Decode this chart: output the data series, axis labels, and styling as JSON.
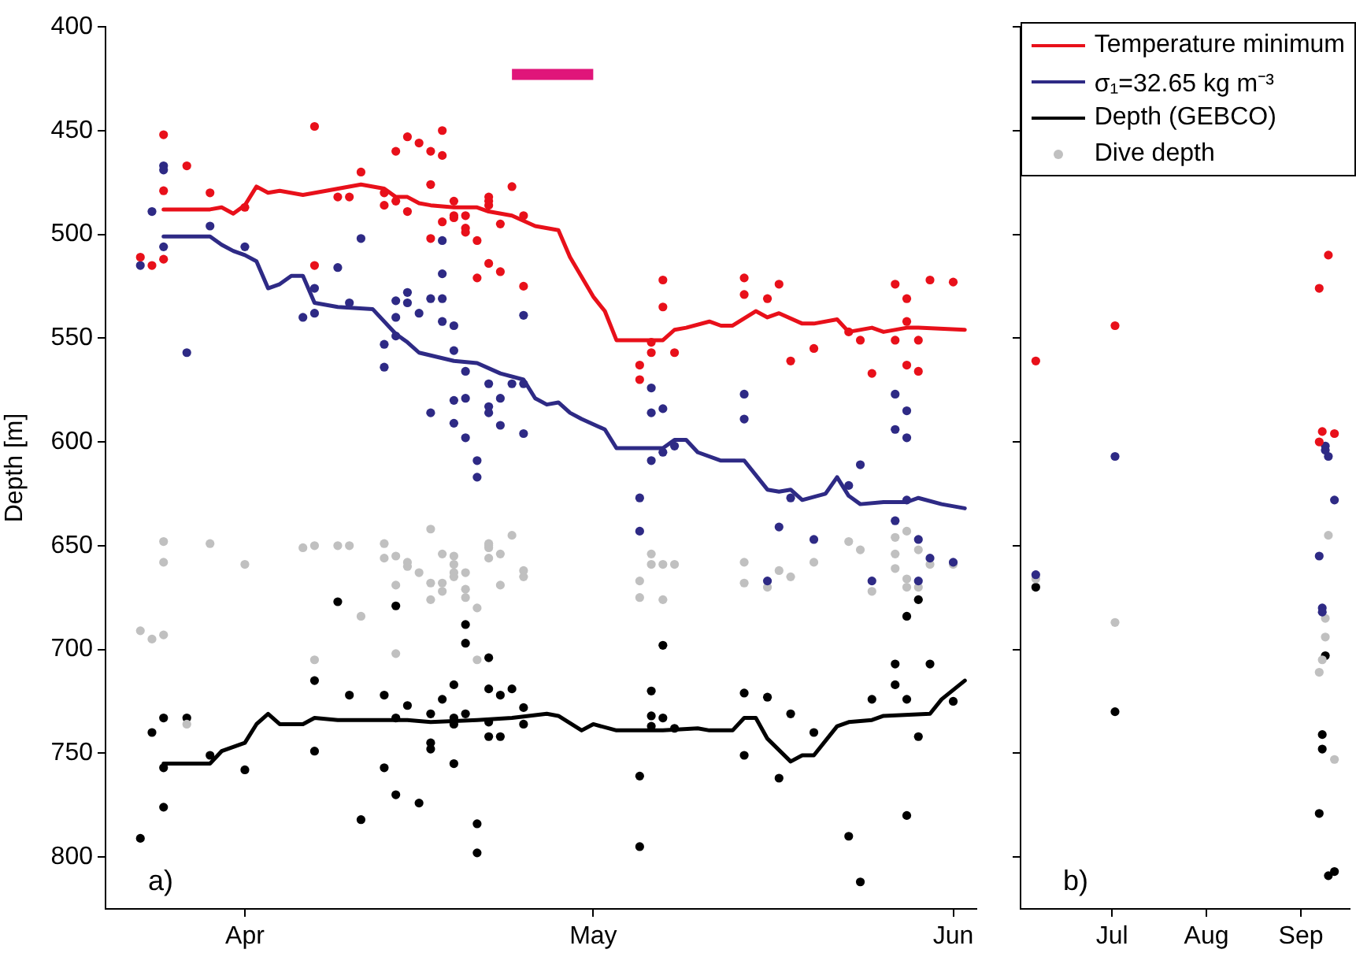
{
  "chart_data": [
    {
      "type": "line",
      "ylabel": "Depth [m]",
      "annotations": [
        "a)"
      ],
      "legend": "top right",
      "grid": false,
      "marker": "circle",
      "line_style": "solid",
      "xlim": [
        "--03-20",
        "--06-03"
      ],
      "xticks": [
        {
          "value": "--04-01",
          "label": "Apr"
        },
        {
          "value": "--05-01",
          "label": "May"
        },
        {
          "value": "--06-01",
          "label": "Jun"
        }
      ],
      "ylim": [
        825,
        400
      ],
      "yticks": [
        400,
        450,
        500,
        550,
        600,
        650,
        700,
        750,
        800
      ],
      "series": [
        {
          "type": "scatter",
          "color": "#e8101a",
          "x": [
            "--03-25",
            "--03-23",
            "--03-24",
            "--03-25",
            "--03-25",
            "--03-27",
            "--03-29",
            "--04-01",
            "--04-07",
            "--04-07",
            "--04-09",
            "--04-10",
            "--04-11",
            "--04-13",
            "--04-13",
            "--04-14",
            "--04-14",
            "--04-15",
            "--04-15",
            "--04-16",
            "--04-17",
            "--04-17",
            "--04-17",
            "--04-18",
            "--04-18",
            "--04-18",
            "--04-19",
            "--04-19",
            "--04-19",
            "--04-20",
            "--04-20",
            "--04-20",
            "--04-21",
            "--04-21",
            "--04-22",
            "--04-22",
            "--04-22",
            "--04-22",
            "--04-23",
            "--04-23",
            "--04-24",
            "--04-25",
            "--04-25",
            "--05-07",
            "--05-07",
            "--05-06",
            "--05-06",
            "--05-05",
            "--05-05",
            "--05-08",
            "--05-14",
            "--05-14",
            "--05-16",
            "--05-17",
            "--05-18",
            "--05-20",
            "--05-23",
            "--05-24",
            "--05-25",
            "--05-27",
            "--05-27",
            "--05-28",
            "--05-28",
            "--05-28",
            "--05-29",
            "--05-29",
            "--05-30",
            "--06-01"
          ],
          "values": [
            452,
            511,
            515,
            512,
            479,
            467,
            480,
            487,
            515,
            448,
            482,
            482,
            470,
            480,
            486,
            460,
            484,
            453,
            489,
            456,
            460,
            476,
            502,
            494,
            462,
            450,
            491,
            492,
            484,
            491,
            497,
            499,
            503,
            521,
            486,
            514,
            484,
            482,
            495,
            518,
            477,
            491,
            525,
            522,
            535,
            552,
            557,
            563,
            570,
            557,
            521,
            529,
            531,
            524,
            561,
            555,
            547,
            551,
            567,
            551,
            524,
            531,
            542,
            563,
            566,
            551,
            522,
            523
          ]
        },
        {
          "type": "scatter",
          "color": "#2e2a85",
          "x": [
            "--03-24",
            "--03-25",
            "--03-25",
            "--03-25",
            "--03-23",
            "--03-27",
            "--03-29",
            "--04-01",
            "--04-06",
            "--04-07",
            "--04-07",
            "--04-09",
            "--04-10",
            "--04-11",
            "--04-13",
            "--04-13",
            "--04-14",
            "--04-14",
            "--04-14",
            "--04-15",
            "--04-15",
            "--04-16",
            "--04-17",
            "--04-18",
            "--04-17",
            "--04-18",
            "--04-18",
            "--04-18",
            "--04-19",
            "--04-19",
            "--04-19",
            "--04-19",
            "--04-20",
            "--04-20",
            "--04-20",
            "--04-21",
            "--04-21",
            "--04-22",
            "--04-22",
            "--04-22",
            "--04-23",
            "--04-23",
            "--04-24",
            "--04-25",
            "--04-25",
            "--04-25",
            "--05-06",
            "--05-06",
            "--05-07",
            "--05-07",
            "--05-08",
            "--05-06",
            "--05-05",
            "--05-05",
            "--05-14",
            "--05-14",
            "--05-18",
            "--05-17",
            "--05-20",
            "--05-16",
            "--05-23",
            "--05-24",
            "--05-25",
            "--05-27",
            "--05-28",
            "--05-27",
            "--05-28",
            "--05-28",
            "--05-27",
            "--05-29",
            "--05-29",
            "--05-30",
            "--06-01"
          ],
          "values": [
            489,
            467,
            469,
            506,
            515,
            557,
            496,
            506,
            540,
            538,
            526,
            516,
            533,
            502,
            564,
            553,
            549,
            532,
            540,
            528,
            533,
            538,
            531,
            531,
            586,
            542,
            519,
            503,
            544,
            556,
            580,
            591,
            598,
            566,
            579,
            609,
            617,
            572,
            586,
            583,
            579,
            592,
            572,
            539,
            596,
            572,
            574,
            586,
            584,
            605,
            602,
            609,
            627,
            643,
            577,
            589,
            627,
            641,
            647,
            667,
            621,
            611,
            667,
            577,
            585,
            594,
            598,
            628,
            638,
            647,
            667,
            656,
            658
          ]
        },
        {
          "type": "scatter",
          "name": "Dive depth",
          "color": "#c0c0c0",
          "x": [
            "--03-23",
            "--03-24",
            "--03-25",
            "--03-25",
            "--03-25",
            "--03-27",
            "--03-29",
            "--04-01",
            "--04-06",
            "--04-07",
            "--04-07",
            "--04-09",
            "--04-10",
            "--04-11",
            "--04-13",
            "--04-13",
            "--04-14",
            "--04-14",
            "--04-14",
            "--04-15",
            "--04-15",
            "--04-16",
            "--04-17",
            "--04-17",
            "--04-17",
            "--04-18",
            "--04-18",
            "--04-18",
            "--04-19",
            "--04-19",
            "--04-19",
            "--04-19",
            "--04-20",
            "--04-20",
            "--04-20",
            "--04-21",
            "--04-21",
            "--04-22",
            "--04-22",
            "--04-22",
            "--04-22",
            "--04-23",
            "--04-23",
            "--04-24",
            "--04-25",
            "--04-25",
            "--05-05",
            "--05-05",
            "--05-06",
            "--05-06",
            "--05-07",
            "--05-07",
            "--05-08",
            "--05-14",
            "--05-14",
            "--05-17",
            "--05-16",
            "--05-18",
            "--05-20",
            "--05-23",
            "--05-24",
            "--05-25",
            "--05-27",
            "--05-28",
            "--05-27",
            "--05-27",
            "--05-28",
            "--05-28",
            "--05-29",
            "--05-29",
            "--05-30",
            "--06-01"
          ],
          "values": [
            691,
            695,
            693,
            658,
            648,
            736,
            649,
            659,
            651,
            650,
            705,
            650,
            650,
            684,
            649,
            656,
            702,
            669,
            655,
            658,
            660,
            663,
            668,
            642,
            676,
            668,
            672,
            654,
            663,
            665,
            659,
            655,
            663,
            671,
            675,
            680,
            705,
            656,
            649,
            651,
            650,
            669,
            654,
            645,
            662,
            665,
            667,
            675,
            654,
            659,
            659,
            676,
            659,
            658,
            668,
            662,
            670,
            665,
            658,
            648,
            652,
            672,
            646,
            643,
            654,
            661,
            670,
            666,
            670,
            652,
            659,
            659
          ]
        },
        {
          "type": "scatter",
          "color": "#000000",
          "x": [
            "--03-23",
            "--03-24",
            "--03-25",
            "--03-25",
            "--03-25",
            "--03-27",
            "--03-29",
            "--04-01",
            "--04-07",
            "--04-07",
            "--04-09",
            "--04-10",
            "--04-11",
            "--04-13",
            "--04-13",
            "--04-14",
            "--04-14",
            "--04-14",
            "--04-15",
            "--04-16",
            "--04-17",
            "--04-17",
            "--04-17",
            "--04-18",
            "--04-19",
            "--04-19",
            "--04-19",
            "--04-19",
            "--04-20",
            "--04-20",
            "--04-20",
            "--04-21",
            "--04-21",
            "--04-22",
            "--04-22",
            "--04-22",
            "--04-22",
            "--04-23",
            "--04-23",
            "--04-24",
            "--04-25",
            "--04-25",
            "--05-06",
            "--05-06",
            "--05-06",
            "--05-07",
            "--05-07",
            "--05-08",
            "--05-05",
            "--05-05",
            "--05-14",
            "--05-14",
            "--05-16",
            "--05-18",
            "--05-17",
            "--05-20",
            "--05-23",
            "--05-24",
            "--05-25",
            "--05-27",
            "--05-27",
            "--05-28",
            "--05-28",
            "--05-28",
            "--05-29",
            "--05-29",
            "--05-30",
            "--06-01"
          ],
          "values": [
            791,
            740,
            776,
            733,
            757,
            733,
            751,
            758,
            715,
            749,
            677,
            722,
            782,
            757,
            722,
            679,
            770,
            733,
            727,
            774,
            731,
            745,
            748,
            724,
            755,
            733,
            717,
            736,
            731,
            688,
            697,
            784,
            798,
            704,
            719,
            735,
            742,
            722,
            742,
            719,
            728,
            736,
            720,
            732,
            737,
            733,
            698,
            738,
            761,
            795,
            721,
            751,
            723,
            731,
            762,
            740,
            790,
            812,
            724,
            707,
            717,
            724,
            684,
            780,
            676,
            742,
            707,
            725
          ]
        },
        {
          "name": "Temperature minimum",
          "marker": "none",
          "color": "#e8101a",
          "x": [
            "--03-25",
            "--03-29",
            "--03-30",
            "--03-31",
            "--04-01",
            "--04-02",
            "--04-03",
            "--04-04",
            "--04-06",
            "--04-08",
            "--04-11",
            "--04-13",
            "--04-14",
            "--04-15",
            "--04-16",
            "--04-17",
            "--04-19",
            "--04-21",
            "--04-22",
            "--04-24",
            "--04-26",
            "--04-28",
            "--04-29",
            "--05-01",
            "--05-02",
            "--05-03",
            "--05-07",
            "--05-08",
            "--05-09",
            "--05-11",
            "--05-12",
            "--05-13",
            "--05-15",
            "--05-16",
            "--05-17",
            "--05-19",
            "--05-20",
            "--05-22",
            "--05-23",
            "--05-25",
            "--05-26",
            "--05-28",
            "--05-29",
            "--06-02"
          ],
          "values": [
            488,
            488,
            487,
            490,
            486,
            477,
            480,
            479,
            481,
            479,
            476,
            478,
            482,
            482,
            485,
            486,
            487,
            487,
            489,
            491,
            496,
            498,
            511,
            530,
            537,
            551,
            551,
            546,
            545,
            542,
            544,
            544,
            537,
            540,
            538,
            543,
            543,
            541,
            547,
            545,
            547,
            545,
            545,
            546
          ]
        },
        {
          "name": "σ₁=32.65 kg m⁻³",
          "marker": "none",
          "color": "#2e2a85",
          "x": [
            "--03-25",
            "--03-29",
            "--03-30",
            "--03-31",
            "--04-01",
            "--04-02",
            "--04-03",
            "--04-04",
            "--04-05",
            "--04-06",
            "--04-07",
            "--04-09",
            "--04-12",
            "--04-14",
            "--04-15",
            "--04-16",
            "--04-19",
            "--04-21",
            "--04-23",
            "--04-25",
            "--04-26",
            "--04-27",
            "--04-28",
            "--04-29",
            "--04-30",
            "--05-02",
            "--05-03",
            "--05-07",
            "--05-08",
            "--05-09",
            "--05-10",
            "--05-12",
            "--05-14",
            "--05-16",
            "--05-17",
            "--05-18",
            "--05-19",
            "--05-21",
            "--05-22",
            "--05-23",
            "--05-24",
            "--05-26",
            "--05-28",
            "--05-29",
            "--05-31",
            "--06-02"
          ],
          "values": [
            501,
            501,
            505,
            508,
            510,
            513,
            526,
            524,
            520,
            520,
            533,
            535,
            536,
            548,
            552,
            557,
            561,
            562,
            567,
            570,
            579,
            582,
            581,
            586,
            589,
            594,
            603,
            603,
            599,
            599,
            605,
            609,
            609,
            623,
            624,
            623,
            628,
            625,
            617,
            626,
            630,
            629,
            629,
            627,
            630,
            632
          ]
        },
        {
          "marker": "none",
          "color": "#e0157a",
          "x": [
            "--04-24",
            "--05-01"
          ],
          "values": [
            423,
            423
          ]
        },
        {
          "name": "Depth (GEBCO)",
          "marker": "none",
          "color": "#000000",
          "x": [
            "--03-25",
            "--03-29",
            "--03-30",
            "--04-01",
            "--04-02",
            "--04-03",
            "--04-04",
            "--04-06",
            "--04-07",
            "--04-09",
            "--04-12",
            "--04-15",
            "--04-17",
            "--04-21",
            "--04-24",
            "--04-27",
            "--04-28",
            "--04-30",
            "--05-01",
            "--05-03",
            "--05-07",
            "--05-10",
            "--05-11",
            "--05-13",
            "--05-14",
            "--05-15",
            "--05-16",
            "--05-18",
            "--05-19",
            "--05-20",
            "--05-22",
            "--05-23",
            "--05-25",
            "--05-26",
            "--05-30",
            "--05-31",
            "--06-02"
          ],
          "values": [
            755,
            755,
            749,
            745,
            736,
            731,
            736,
            736,
            733,
            734,
            734,
            734,
            735,
            734,
            733,
            731,
            732,
            739,
            736,
            739,
            739,
            738,
            739,
            739,
            733,
            733,
            743,
            754,
            751,
            751,
            737,
            735,
            734,
            732,
            731,
            724,
            715
          ]
        }
      ]
    },
    {
      "type": "scatter",
      "annotations": [
        "b)"
      ],
      "grid": false,
      "marker": "circle",
      "tick_labels": "x",
      "xlim": [
        "--06-01",
        "--09-17"
      ],
      "xticks": [
        {
          "value": "--07-01",
          "label": "Jul"
        },
        {
          "value": "--08-01",
          "label": "Aug"
        },
        {
          "value": "--09-01",
          "label": "Sep"
        }
      ],
      "ylim": [
        825,
        400
      ],
      "yticks": [
        400,
        450,
        500,
        550,
        600,
        650,
        700,
        750,
        800
      ],
      "series": [
        {
          "color": "#e8101a",
          "x": [
            "--06-06",
            "--07-02",
            "--09-10",
            "--09-07",
            "--09-08",
            "--09-07",
            "--09-12"
          ],
          "values": [
            561,
            544,
            510,
            526,
            595,
            600,
            596
          ]
        },
        {
          "color": "#2e2a85",
          "x": [
            "--06-06",
            "--07-02",
            "--09-09",
            "--09-09",
            "--09-10",
            "--09-12",
            "--09-07",
            "--09-08",
            "--09-08"
          ],
          "values": [
            664,
            607,
            602,
            604,
            607,
            628,
            655,
            680,
            682
          ]
        },
        {
          "color": "#c0c0c0",
          "x": [
            "--06-06",
            "--07-02",
            "--09-10",
            "--09-09",
            "--09-09",
            "--09-08",
            "--09-07",
            "--09-12"
          ],
          "values": [
            666,
            687,
            645,
            685,
            694,
            705,
            711,
            753
          ]
        },
        {
          "color": "#000000",
          "x": [
            "--06-06",
            "--07-02",
            "--09-09",
            "--09-08",
            "--09-08",
            "--09-07",
            "--09-10",
            "--09-12"
          ],
          "values": [
            670,
            730,
            703,
            741,
            748,
            779,
            809,
            807
          ]
        }
      ]
    }
  ]
}
